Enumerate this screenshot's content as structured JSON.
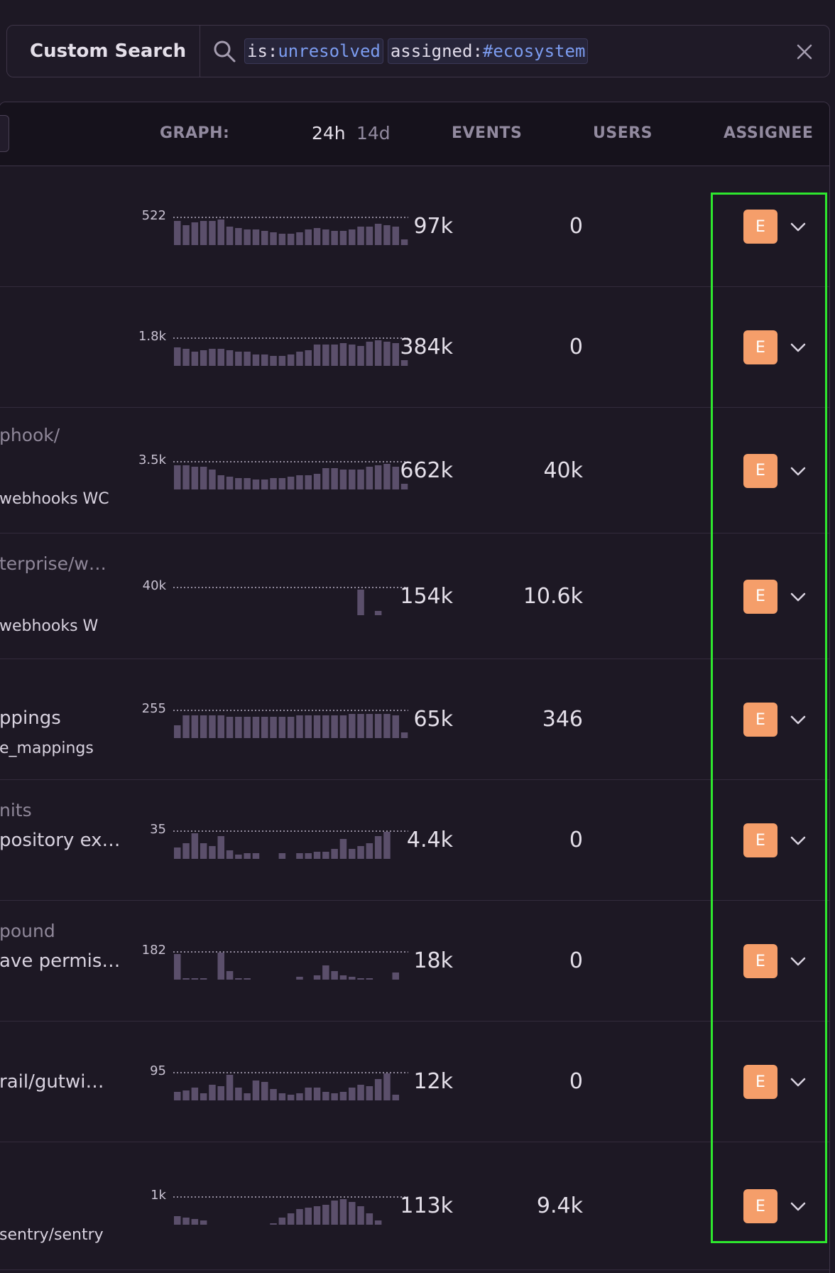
{
  "search": {
    "saved_label": "Custom Search",
    "tokens": [
      {
        "key": "is:",
        "value": "unresolved"
      },
      {
        "key": "assigned:",
        "value": "#ecosystem"
      }
    ]
  },
  "table": {
    "headers": {
      "graph": "GRAPH:",
      "period_24h": "24h",
      "period_14d": "14d",
      "events": "EVENTS",
      "users": "USERS",
      "assignee": "ASSIGNEE"
    },
    "rows": [
      {
        "title": "",
        "subtitle": "",
        "meta": "",
        "max": "522",
        "events": "97k",
        "users": "0",
        "assignee": "E",
        "bars": [
          0.9,
          0.75,
          0.85,
          0.9,
          0.9,
          0.95,
          0.7,
          0.65,
          0.6,
          0.6,
          0.55,
          0.5,
          0.45,
          0.45,
          0.5,
          0.6,
          0.65,
          0.6,
          0.55,
          0.55,
          0.6,
          0.7,
          0.7,
          0.8,
          0.75,
          0.7,
          0.25
        ]
      },
      {
        "title": "",
        "subtitle": "",
        "meta": "",
        "max": "1.8k",
        "events": "384k",
        "users": "0",
        "assignee": "E",
        "bars": [
          0.7,
          0.65,
          0.55,
          0.6,
          0.65,
          0.65,
          0.6,
          0.55,
          0.55,
          0.45,
          0.45,
          0.4,
          0.4,
          0.45,
          0.55,
          0.6,
          0.8,
          0.8,
          0.8,
          0.85,
          0.8,
          0.75,
          0.9,
          0.95,
          0.9,
          0.85,
          0.25
        ]
      },
      {
        "title": "phook/",
        "subtitle": "",
        "meta": "webhooks   WC",
        "max": "3.5k",
        "events": "662k",
        "users": "40k",
        "assignee": "E",
        "bars": [
          0.9,
          0.9,
          0.85,
          0.85,
          0.75,
          0.55,
          0.5,
          0.45,
          0.45,
          0.4,
          0.4,
          0.45,
          0.45,
          0.5,
          0.55,
          0.55,
          0.6,
          0.8,
          0.8,
          0.75,
          0.75,
          0.75,
          0.85,
          0.9,
          0.95,
          0.85,
          0.25
        ]
      },
      {
        "title": "terprise/w…",
        "subtitle": "",
        "meta": "webhooks   W",
        "max": "40k",
        "events": "154k",
        "users": "10.6k",
        "assignee": "E",
        "bars": [
          0.02,
          0.02,
          0.02,
          0.02,
          0.02,
          0.02,
          0.02,
          0.02,
          0.02,
          0.02,
          0.02,
          0.02,
          0.02,
          0.02,
          0.02,
          0.02,
          0.02,
          0.02,
          0.02,
          0.02,
          0.02,
          0.95,
          0.05,
          0.2,
          0.02,
          0.02,
          0.02
        ]
      },
      {
        "title": "",
        "subtitle": "ppings",
        "meta": "e_mappings",
        "max": "255",
        "events": "65k",
        "users": "346",
        "assignee": "E",
        "bars": [
          0.5,
          0.85,
          0.85,
          0.85,
          0.85,
          0.85,
          0.8,
          0.8,
          0.8,
          0.8,
          0.8,
          0.8,
          0.8,
          0.8,
          0.85,
          0.85,
          0.85,
          0.85,
          0.85,
          0.85,
          0.9,
          0.9,
          0.9,
          0.9,
          0.9,
          0.85,
          0.25
        ]
      },
      {
        "title": "nits",
        "subtitle": "pository ex…",
        "meta": "",
        "max": "35",
        "events": "4.4k",
        "users": "0",
        "assignee": "E",
        "bars": [
          0.45,
          0.6,
          0.95,
          0.6,
          0.5,
          0.85,
          0.35,
          0.2,
          0.25,
          0.25,
          0.02,
          0.02,
          0.25,
          0.02,
          0.25,
          0.25,
          0.3,
          0.3,
          0.4,
          0.75,
          0.4,
          0.5,
          0.6,
          0.85,
          1.0,
          0.02,
          0.02
        ]
      },
      {
        "title": "pound",
        "subtitle": "ave permis…",
        "meta": "",
        "max": "182",
        "events": "18k",
        "users": "0",
        "assignee": "E",
        "bars": [
          0.95,
          0.1,
          0.1,
          0.1,
          0.02,
          1.0,
          0.35,
          0.1,
          0.1,
          0.05,
          0.02,
          0.02,
          0.02,
          0.02,
          0.15,
          0.05,
          0.2,
          0.55,
          0.35,
          0.2,
          0.15,
          0.1,
          0.1,
          0.05,
          0.02,
          0.3,
          0.02
        ]
      },
      {
        "title": "",
        "subtitle": "rail/gutwi…",
        "meta": "",
        "max": "95",
        "events": "12k",
        "users": "0",
        "assignee": "E",
        "bars": [
          0.35,
          0.4,
          0.5,
          0.3,
          0.6,
          0.55,
          0.95,
          0.5,
          0.3,
          0.75,
          0.7,
          0.45,
          0.3,
          0.25,
          0.3,
          0.5,
          0.5,
          0.35,
          0.3,
          0.35,
          0.5,
          0.6,
          0.55,
          0.8,
          1.0,
          0.25,
          0.02
        ]
      },
      {
        "title": "",
        "subtitle": "",
        "meta": "sentry/sentry",
        "max": "1k",
        "events": "113k",
        "users": "9.4k",
        "assignee": "E",
        "bars": [
          0.35,
          0.3,
          0.25,
          0.2,
          0.05,
          0.05,
          0.05,
          0.05,
          0.05,
          0.05,
          0.05,
          0.1,
          0.3,
          0.45,
          0.6,
          0.65,
          0.7,
          0.75,
          0.9,
          0.95,
          0.85,
          0.7,
          0.45,
          0.2,
          0.02,
          0.02,
          0.02
        ]
      }
    ]
  },
  "colors": {
    "bar": "#5b4f6b",
    "accent_avatar": "#f59e6a",
    "highlight": "#2ee62e",
    "token_value": "#7c9cf0"
  }
}
